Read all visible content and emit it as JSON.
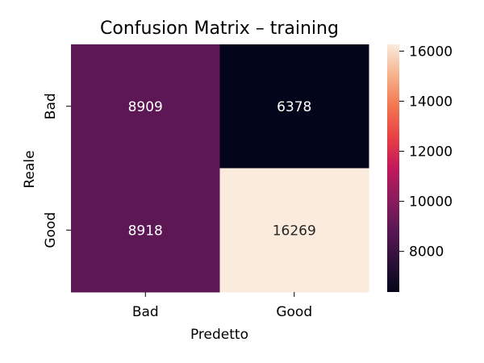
{
  "chart_data": {
    "type": "heatmap",
    "title": "Confusion Matrix – training",
    "xlabel": "Predetto",
    "ylabel": "Reale",
    "x_categories": [
      "Bad",
      "Good"
    ],
    "y_categories": [
      "Bad",
      "Good"
    ],
    "values": [
      [
        8909,
        6378
      ],
      [
        8918,
        16269
      ]
    ],
    "colorscale": "rocket",
    "colorbar": {
      "range": [
        6378,
        16269
      ],
      "ticks": [
        8000,
        10000,
        12000,
        14000,
        16000
      ],
      "tick_labels": [
        "8000",
        "10000",
        "12000",
        "14000",
        "16000"
      ]
    },
    "legend": "right"
  }
}
